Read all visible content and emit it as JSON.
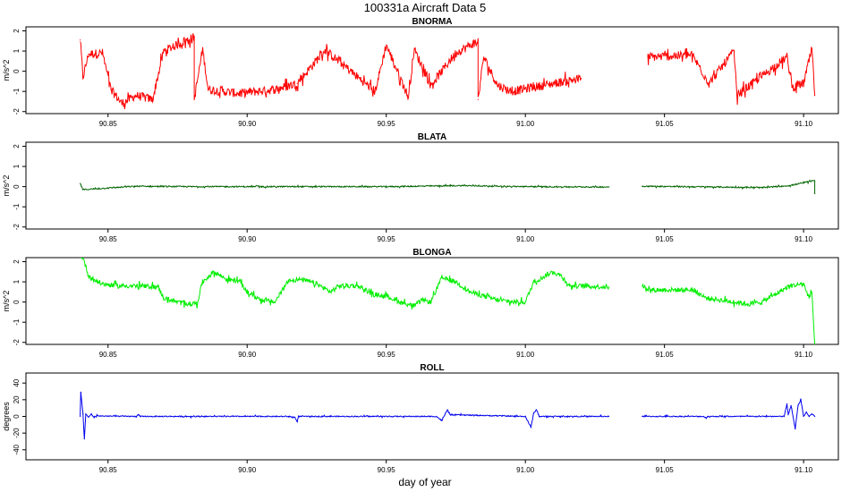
{
  "chart_data": {
    "type": "line",
    "title": "100331a   Aircraft Data 5",
    "xlabel": "day of year",
    "xlim": [
      90.8205,
      91.1125
    ],
    "x_ticks": [
      90.85,
      90.9,
      90.95,
      91.0,
      91.05,
      91.1
    ],
    "x_tick_labels": [
      "90.85",
      "90.90",
      "90.95",
      "91.00",
      "91.05",
      "91.10"
    ],
    "data_gap": [
      91.03,
      91.042
    ],
    "panels": [
      {
        "title": "BNORMA",
        "ylabel": "m/s^2",
        "color": "#ff0000",
        "ylim": [
          -2.1,
          2.2
        ],
        "y_ticks": [
          -2,
          -1,
          0,
          1,
          2
        ],
        "y_tick_labels": [
          "-2",
          "-1",
          "0",
          "1",
          "2"
        ],
        "series": [
          {
            "x": 90.84,
            "y": 1.55
          },
          {
            "x": 90.841,
            "y": -0.3
          },
          {
            "x": 90.843,
            "y": 0.85
          },
          {
            "x": 90.848,
            "y": 0.9
          },
          {
            "x": 90.851,
            "y": -0.9
          },
          {
            "x": 90.855,
            "y": -1.6
          },
          {
            "x": 90.86,
            "y": -1.2
          },
          {
            "x": 90.866,
            "y": -1.4
          },
          {
            "x": 90.87,
            "y": 1.0
          },
          {
            "x": 90.881,
            "y": 1.7
          },
          {
            "x": 90.881,
            "y": -1.4
          },
          {
            "x": 90.884,
            "y": 1.1
          },
          {
            "x": 90.886,
            "y": -0.9
          },
          {
            "x": 90.897,
            "y": -1.1
          },
          {
            "x": 90.91,
            "y": -0.9
          },
          {
            "x": 90.918,
            "y": -0.6
          },
          {
            "x": 90.928,
            "y": 1.05
          },
          {
            "x": 90.946,
            "y": -1.0
          },
          {
            "x": 90.95,
            "y": 1.3
          },
          {
            "x": 90.958,
            "y": -1.3
          },
          {
            "x": 90.96,
            "y": 1.1
          },
          {
            "x": 90.966,
            "y": -0.7
          },
          {
            "x": 90.975,
            "y": 0.9
          },
          {
            "x": 90.983,
            "y": 1.5
          },
          {
            "x": 90.983,
            "y": -1.4
          },
          {
            "x": 90.985,
            "y": 0.7
          },
          {
            "x": 90.99,
            "y": -0.7
          },
          {
            "x": 90.995,
            "y": -1.0
          },
          {
            "x": 91.02,
            "y": -0.35
          },
          {
            "x": 91.044,
            "y": 0.7
          },
          {
            "x": 91.06,
            "y": 0.8
          },
          {
            "x": 91.066,
            "y": -0.6
          },
          {
            "x": 91.075,
            "y": 1.0
          },
          {
            "x": 91.076,
            "y": -1.2
          },
          {
            "x": 91.094,
            "y": 0.7
          },
          {
            "x": 91.096,
            "y": -0.8
          },
          {
            "x": 91.1,
            "y": -0.6
          },
          {
            "x": 91.103,
            "y": 1.1
          },
          {
            "x": 91.104,
            "y": -1.2
          }
        ]
      },
      {
        "title": "BLATA",
        "ylabel": "m/s^2",
        "color": "#006400",
        "ylim": [
          -2.1,
          2.2
        ],
        "y_ticks": [
          -2,
          -1,
          0,
          1,
          2
        ],
        "y_tick_labels": [
          "-2",
          "-1",
          "0",
          "1",
          "2"
        ],
        "series": [
          {
            "x": 90.84,
            "y": 0.15
          },
          {
            "x": 90.841,
            "y": -0.15
          },
          {
            "x": 90.86,
            "y": 0.02
          },
          {
            "x": 90.88,
            "y": 0.0
          },
          {
            "x": 90.9,
            "y": 0.0
          },
          {
            "x": 90.95,
            "y": 0.0
          },
          {
            "x": 90.977,
            "y": 0.05
          },
          {
            "x": 91.0,
            "y": 0.0
          },
          {
            "x": 91.03,
            "y": -0.02
          },
          {
            "x": 91.042,
            "y": 0.02
          },
          {
            "x": 91.07,
            "y": -0.02
          },
          {
            "x": 91.085,
            "y": -0.05
          },
          {
            "x": 91.095,
            "y": 0.05
          },
          {
            "x": 91.104,
            "y": 0.3
          },
          {
            "x": 91.104,
            "y": -0.35
          }
        ]
      },
      {
        "title": "BLONGA",
        "ylabel": "m/s^2",
        "color": "#00ee00",
        "ylim": [
          -2.1,
          2.2
        ],
        "y_ticks": [
          -2,
          -1,
          0,
          1,
          2
        ],
        "y_tick_labels": [
          "-2",
          "-1",
          "0",
          "1",
          "2"
        ],
        "series": [
          {
            "x": 90.84,
            "y": 2.3
          },
          {
            "x": 90.841,
            "y": 2.2
          },
          {
            "x": 90.843,
            "y": 1.3
          },
          {
            "x": 90.845,
            "y": 1.1
          },
          {
            "x": 90.848,
            "y": 0.9
          },
          {
            "x": 90.853,
            "y": 0.8
          },
          {
            "x": 90.86,
            "y": 0.8
          },
          {
            "x": 90.868,
            "y": 0.75
          },
          {
            "x": 90.87,
            "y": 0.2
          },
          {
            "x": 90.875,
            "y": 0.0
          },
          {
            "x": 90.88,
            "y": -0.1
          },
          {
            "x": 90.882,
            "y": -0.05
          },
          {
            "x": 90.884,
            "y": 1.0
          },
          {
            "x": 90.888,
            "y": 1.5
          },
          {
            "x": 90.893,
            "y": 1.1
          },
          {
            "x": 90.897,
            "y": 1.05
          },
          {
            "x": 90.9,
            "y": 0.5
          },
          {
            "x": 90.905,
            "y": 0.1
          },
          {
            "x": 90.91,
            "y": 0.0
          },
          {
            "x": 90.912,
            "y": 0.45
          },
          {
            "x": 90.915,
            "y": 1.1
          },
          {
            "x": 90.92,
            "y": 1.1
          },
          {
            "x": 90.925,
            "y": 0.9
          },
          {
            "x": 90.93,
            "y": 0.5
          },
          {
            "x": 90.933,
            "y": 0.8
          },
          {
            "x": 90.94,
            "y": 0.8
          },
          {
            "x": 90.945,
            "y": 0.4
          },
          {
            "x": 90.95,
            "y": 0.3
          },
          {
            "x": 90.955,
            "y": 0.0
          },
          {
            "x": 90.96,
            "y": -0.2
          },
          {
            "x": 90.963,
            "y": 0.1
          },
          {
            "x": 90.966,
            "y": 0.0
          },
          {
            "x": 90.97,
            "y": 1.2
          },
          {
            "x": 90.975,
            "y": 1.0
          },
          {
            "x": 90.98,
            "y": 0.5
          },
          {
            "x": 90.985,
            "y": 0.3
          },
          {
            "x": 90.99,
            "y": 0.1
          },
          {
            "x": 90.996,
            "y": 0.0
          },
          {
            "x": 91.0,
            "y": 0.0
          },
          {
            "x": 91.003,
            "y": 1.0
          },
          {
            "x": 91.01,
            "y": 1.5
          },
          {
            "x": 91.013,
            "y": 1.3
          },
          {
            "x": 91.016,
            "y": 0.8
          },
          {
            "x": 91.03,
            "y": 0.75
          },
          {
            "x": 91.042,
            "y": 0.8
          },
          {
            "x": 91.045,
            "y": 0.6
          },
          {
            "x": 91.06,
            "y": 0.6
          },
          {
            "x": 91.065,
            "y": 0.2
          },
          {
            "x": 91.075,
            "y": 0.0
          },
          {
            "x": 91.08,
            "y": -0.1
          },
          {
            "x": 91.085,
            "y": 0.0
          },
          {
            "x": 91.09,
            "y": 0.4
          },
          {
            "x": 91.095,
            "y": 0.8
          },
          {
            "x": 91.1,
            "y": 0.9
          },
          {
            "x": 91.102,
            "y": 0.2
          },
          {
            "x": 91.103,
            "y": 0.5
          },
          {
            "x": 91.104,
            "y": -2.1
          }
        ]
      },
      {
        "title": "ROLL",
        "ylabel": "degrees",
        "color": "#0000ee",
        "ylim": [
          -52,
          52
        ],
        "y_ticks": [
          -40,
          -20,
          0,
          20,
          40
        ],
        "y_tick_labels": [
          "-40",
          "-20",
          "0",
          "20",
          "40"
        ],
        "series": [
          {
            "x": 90.84,
            "y": 0.0
          },
          {
            "x": 90.8402,
            "y": 29.0
          },
          {
            "x": 90.841,
            "y": 3.0
          },
          {
            "x": 90.8415,
            "y": -27.0
          },
          {
            "x": 90.842,
            "y": 2.5
          },
          {
            "x": 90.843,
            "y": -1.0
          },
          {
            "x": 90.844,
            "y": 3.0
          },
          {
            "x": 90.845,
            "y": -1.5
          },
          {
            "x": 90.846,
            "y": 1.0
          },
          {
            "x": 90.847,
            "y": 0.5
          },
          {
            "x": 90.86,
            "y": 0.0
          },
          {
            "x": 90.861,
            "y": 2.0
          },
          {
            "x": 90.8615,
            "y": 0.0
          },
          {
            "x": 90.915,
            "y": 0.0
          },
          {
            "x": 90.917,
            "y": -1.0
          },
          {
            "x": 90.918,
            "y": -6.0
          },
          {
            "x": 90.9185,
            "y": 0.0
          },
          {
            "x": 90.968,
            "y": 0.0
          },
          {
            "x": 90.97,
            "y": -5.0
          },
          {
            "x": 90.972,
            "y": 8.0
          },
          {
            "x": 90.973,
            "y": 2.0
          },
          {
            "x": 91.0,
            "y": 0.0
          },
          {
            "x": 91.002,
            "y": -13.0
          },
          {
            "x": 91.003,
            "y": 4.0
          },
          {
            "x": 91.004,
            "y": 8.0
          },
          {
            "x": 91.005,
            "y": 0.0
          },
          {
            "x": 91.03,
            "y": 0.0
          },
          {
            "x": 91.042,
            "y": 0.0
          },
          {
            "x": 91.064,
            "y": 0.0
          },
          {
            "x": 91.065,
            "y": -2.0
          },
          {
            "x": 91.0655,
            "y": 0.0
          },
          {
            "x": 91.093,
            "y": 0.0
          },
          {
            "x": 91.094,
            "y": 15.0
          },
          {
            "x": 91.0945,
            "y": 2.0
          },
          {
            "x": 91.0955,
            "y": 13.0
          },
          {
            "x": 91.097,
            "y": -15.0
          },
          {
            "x": 91.098,
            "y": 13.0
          },
          {
            "x": 91.099,
            "y": 20.0
          },
          {
            "x": 91.1,
            "y": 0.0
          },
          {
            "x": 91.101,
            "y": 5.0
          },
          {
            "x": 91.102,
            "y": 0.0
          },
          {
            "x": 91.103,
            "y": 3.0
          },
          {
            "x": 91.104,
            "y": 0.0
          }
        ]
      }
    ]
  }
}
